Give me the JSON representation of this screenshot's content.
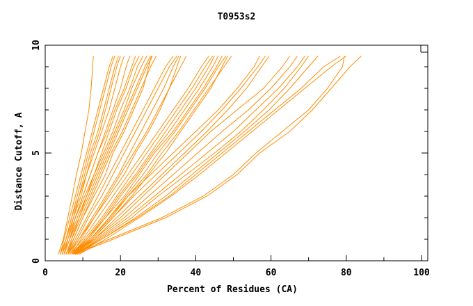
{
  "chart_data": {
    "type": "line",
    "title": "T0953s2",
    "xlabel": "Percent of Residues (CA)",
    "ylabel": "Distance Cutoff, A",
    "xlim": [
      0,
      102
    ],
    "ylim": [
      0,
      10
    ],
    "x_ticks": [
      "0",
      "20",
      "40",
      "60",
      "80",
      "100"
    ],
    "y_ticks": [
      "0",
      "5",
      "10"
    ],
    "grid": false,
    "line_color": "#ff8c00",
    "y_levels": [
      0.3,
      1,
      2,
      3,
      4,
      5,
      6,
      7,
      8,
      9,
      9.5
    ],
    "series": [
      {
        "x": [
          3.5,
          4.8,
          6,
          7.2,
          8.3,
          9.6,
          10.6,
          11.6,
          12.2,
          12.6,
          12.8
        ]
      },
      {
        "x": [
          4,
          5,
          6.5,
          8,
          9.5,
          11,
          12.5,
          14,
          15.5,
          17,
          18
        ]
      },
      {
        "x": [
          4,
          5.5,
          7,
          8.5,
          10,
          11.5,
          13,
          14.5,
          16,
          17.5,
          18.5
        ]
      },
      {
        "x": [
          4.5,
          5.5,
          7,
          9,
          10.5,
          12,
          14,
          15.5,
          17,
          18.5,
          19.5
        ]
      },
      {
        "x": [
          5,
          6,
          7.5,
          9,
          11,
          12.5,
          14.5,
          16,
          17.5,
          19,
          20
        ]
      },
      {
        "x": [
          4,
          5.5,
          7.5,
          9.5,
          11,
          13,
          15,
          17,
          18.5,
          20,
          21
        ]
      },
      {
        "x": [
          5,
          6,
          8,
          10,
          12,
          14,
          16,
          18,
          20,
          21.5,
          22.5
        ]
      },
      {
        "x": [
          5,
          6.5,
          8,
          10,
          12,
          14,
          16.5,
          18.5,
          21,
          23,
          24
        ]
      },
      {
        "x": [
          4.5,
          6,
          8,
          10.5,
          13,
          15,
          17,
          19,
          21.5,
          23.5,
          25
        ]
      },
      {
        "x": [
          5,
          6.5,
          8.5,
          11,
          13,
          15.5,
          18,
          20,
          22.5,
          24.5,
          26
        ]
      },
      {
        "x": [
          5.5,
          7,
          9,
          11,
          13.5,
          16,
          18.5,
          21,
          23,
          25.5,
          27
        ]
      },
      {
        "x": [
          5,
          6.5,
          9,
          11.5,
          14,
          16.5,
          19,
          21.5,
          24,
          26.5,
          28
        ]
      },
      {
        "x": [
          6,
          7,
          9.5,
          12,
          14.5,
          17,
          19.5,
          22,
          24.5,
          27,
          28.5
        ]
      },
      {
        "x": [
          5.5,
          7.5,
          10,
          12.5,
          15,
          17.5,
          20.5,
          23,
          25.5,
          28,
          29.5
        ]
      },
      {
        "x": [
          6,
          7.5,
          10,
          13,
          16,
          18,
          21,
          23.5,
          26,
          27.5,
          28.2
        ]
      },
      {
        "x": [
          6,
          8,
          11,
          14,
          17,
          20,
          23,
          26,
          29,
          32,
          34
        ]
      },
      {
        "x": [
          6,
          8.5,
          11.5,
          15,
          18,
          21,
          24,
          27,
          30,
          33,
          35
        ]
      },
      {
        "x": [
          6.5,
          9,
          12.5,
          16,
          19.5,
          22.5,
          25.5,
          28.5,
          31.5,
          34,
          35.5
        ]
      },
      {
        "x": [
          6,
          9,
          13,
          16.5,
          20,
          23.5,
          27,
          30,
          33,
          36,
          37.5
        ]
      },
      {
        "x": [
          7,
          9.5,
          13,
          17,
          21,
          24,
          27.5,
          30.5,
          33,
          35,
          36
        ]
      },
      {
        "x": [
          6.5,
          10,
          14,
          18,
          22,
          26,
          30,
          34,
          38,
          41.5,
          43.5
        ]
      },
      {
        "x": [
          7,
          10.5,
          15,
          19,
          23,
          27,
          31,
          35,
          39,
          42.5,
          44.5
        ]
      },
      {
        "x": [
          7,
          11,
          15.5,
          19.5,
          24,
          28,
          32,
          36,
          40,
          43.5,
          45
        ]
      },
      {
        "x": [
          7.5,
          11,
          16,
          20,
          24.5,
          28.5,
          33,
          37,
          41,
          44.5,
          46
        ]
      },
      {
        "x": [
          7,
          11.5,
          16,
          21,
          25,
          29,
          34,
          38,
          42,
          45.5,
          47
        ]
      },
      {
        "x": [
          8,
          12,
          17,
          21.5,
          26,
          30,
          34.5,
          38.5,
          42.5,
          46,
          48
        ]
      },
      {
        "x": [
          7.5,
          12,
          17.5,
          22,
          27,
          31,
          35.5,
          39.5,
          43.5,
          47.5,
          49.5
        ]
      },
      {
        "x": [
          8,
          12.5,
          18,
          23,
          27.5,
          32,
          36,
          40,
          44,
          47,
          48.5
        ]
      },
      {
        "x": [
          7,
          12,
          17,
          22,
          28,
          34,
          40,
          46,
          51,
          55.5,
          57
        ]
      },
      {
        "x": [
          7.5,
          12.5,
          18,
          23.5,
          29.5,
          35.5,
          41.5,
          47,
          52,
          56.5,
          58.5
        ]
      },
      {
        "x": [
          8,
          13,
          19,
          25,
          31,
          37,
          43,
          48.5,
          53.5,
          57.5,
          59.5
        ]
      },
      {
        "x": [
          7,
          13,
          20,
          26,
          32,
          38,
          44,
          51,
          58,
          63,
          65
        ]
      },
      {
        "x": [
          7.5,
          13.5,
          21,
          27.5,
          34,
          40.5,
          47,
          54,
          60,
          65,
          67
        ]
      },
      {
        "x": [
          8,
          14,
          22,
          29,
          36,
          43,
          50,
          56,
          62,
          67,
          69
        ]
      },
      {
        "x": [
          8,
          14.5,
          23,
          30,
          37.5,
          45,
          52,
          58,
          63.5,
          68,
          70
        ]
      },
      {
        "x": [
          8.5,
          15,
          24,
          32,
          39,
          46,
          53,
          59.5,
          65,
          70,
          72.5
        ]
      },
      {
        "x": [
          8,
          15,
          24.5,
          33,
          40,
          47,
          54,
          61,
          68,
          74,
          78.5
        ]
      },
      {
        "x": [
          9,
          16,
          25,
          33.5,
          41,
          48,
          55,
          62,
          69,
          76,
          80
        ]
      },
      {
        "x": [
          8,
          18,
          32,
          43,
          51,
          57,
          65,
          71,
          76,
          81,
          84
        ]
      },
      {
        "x": [
          7.5,
          17,
          31,
          42,
          50,
          56,
          63,
          70,
          75,
          79,
          79.5
        ]
      }
    ]
  }
}
